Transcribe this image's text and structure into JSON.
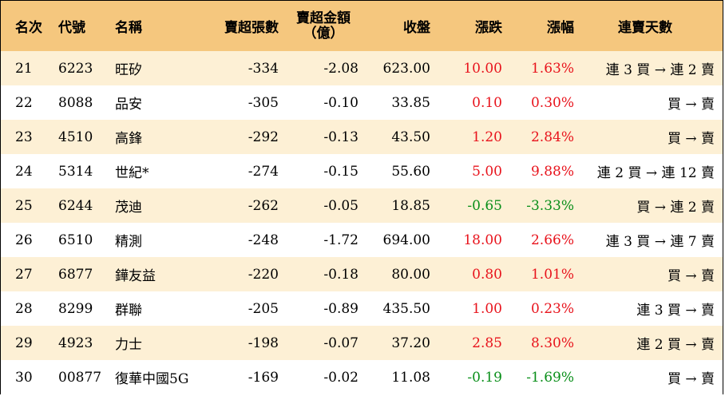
{
  "header": {
    "rank": "名次",
    "code": "代號",
    "name": "名稱",
    "net_sell_sheets": "賣超張數",
    "net_sell_amount_line1": "賣超金額",
    "net_sell_amount_line2": "（億）",
    "close": "收盤",
    "change": "漲跌",
    "change_pct": "漲幅",
    "streak_days": "連賣天數"
  },
  "colors": {
    "header_bg": "#f5c77e",
    "odd_row_bg": "#fdf0d5",
    "up": "#e8131c",
    "down": "#0a8f1a"
  },
  "rows": [
    {
      "rank": "21",
      "code": "6223",
      "name": "旺矽",
      "sheets": "-334",
      "amount": "-2.08",
      "close": "623.00",
      "change": "10.00",
      "pct": "1.63%",
      "streak": "連 3 買 → 連 2 賣",
      "dir": "up"
    },
    {
      "rank": "22",
      "code": "8088",
      "name": "品安",
      "sheets": "-305",
      "amount": "-0.10",
      "close": "33.85",
      "change": "0.10",
      "pct": "0.30%",
      "streak": "買 → 賣",
      "dir": "up"
    },
    {
      "rank": "23",
      "code": "4510",
      "name": "高鋒",
      "sheets": "-292",
      "amount": "-0.13",
      "close": "43.50",
      "change": "1.20",
      "pct": "2.84%",
      "streak": "買 → 賣",
      "dir": "up"
    },
    {
      "rank": "24",
      "code": "5314",
      "name": "世紀*",
      "sheets": "-274",
      "amount": "-0.15",
      "close": "55.60",
      "change": "5.00",
      "pct": "9.88%",
      "streak": "連 2 買 → 連 12 賣",
      "dir": "up"
    },
    {
      "rank": "25",
      "code": "6244",
      "name": "茂迪",
      "sheets": "-262",
      "amount": "-0.05",
      "close": "18.85",
      "change": "-0.65",
      "pct": "-3.33%",
      "streak": "買 → 連 2 賣",
      "dir": "down"
    },
    {
      "rank": "26",
      "code": "6510",
      "name": "精測",
      "sheets": "-248",
      "amount": "-1.72",
      "close": "694.00",
      "change": "18.00",
      "pct": "2.66%",
      "streak": "連 3 買 → 連 7 賣",
      "dir": "up"
    },
    {
      "rank": "27",
      "code": "6877",
      "name": "鏵友益",
      "sheets": "-220",
      "amount": "-0.18",
      "close": "80.00",
      "change": "0.80",
      "pct": "1.01%",
      "streak": "買 → 賣",
      "dir": "up"
    },
    {
      "rank": "28",
      "code": "8299",
      "name": "群聯",
      "sheets": "-205",
      "amount": "-0.89",
      "close": "435.50",
      "change": "1.00",
      "pct": "0.23%",
      "streak": "連 3 買 → 賣",
      "dir": "up"
    },
    {
      "rank": "29",
      "code": "4923",
      "name": "力士",
      "sheets": "-198",
      "amount": "-0.07",
      "close": "37.20",
      "change": "2.85",
      "pct": "8.30%",
      "streak": "連 2 買 → 賣",
      "dir": "up"
    },
    {
      "rank": "30",
      "code": "00877",
      "name": "復華中國5G",
      "sheets": "-169",
      "amount": "-0.02",
      "close": "11.08",
      "change": "-0.19",
      "pct": "-1.69%",
      "streak": "買 → 賣",
      "dir": "down"
    }
  ]
}
